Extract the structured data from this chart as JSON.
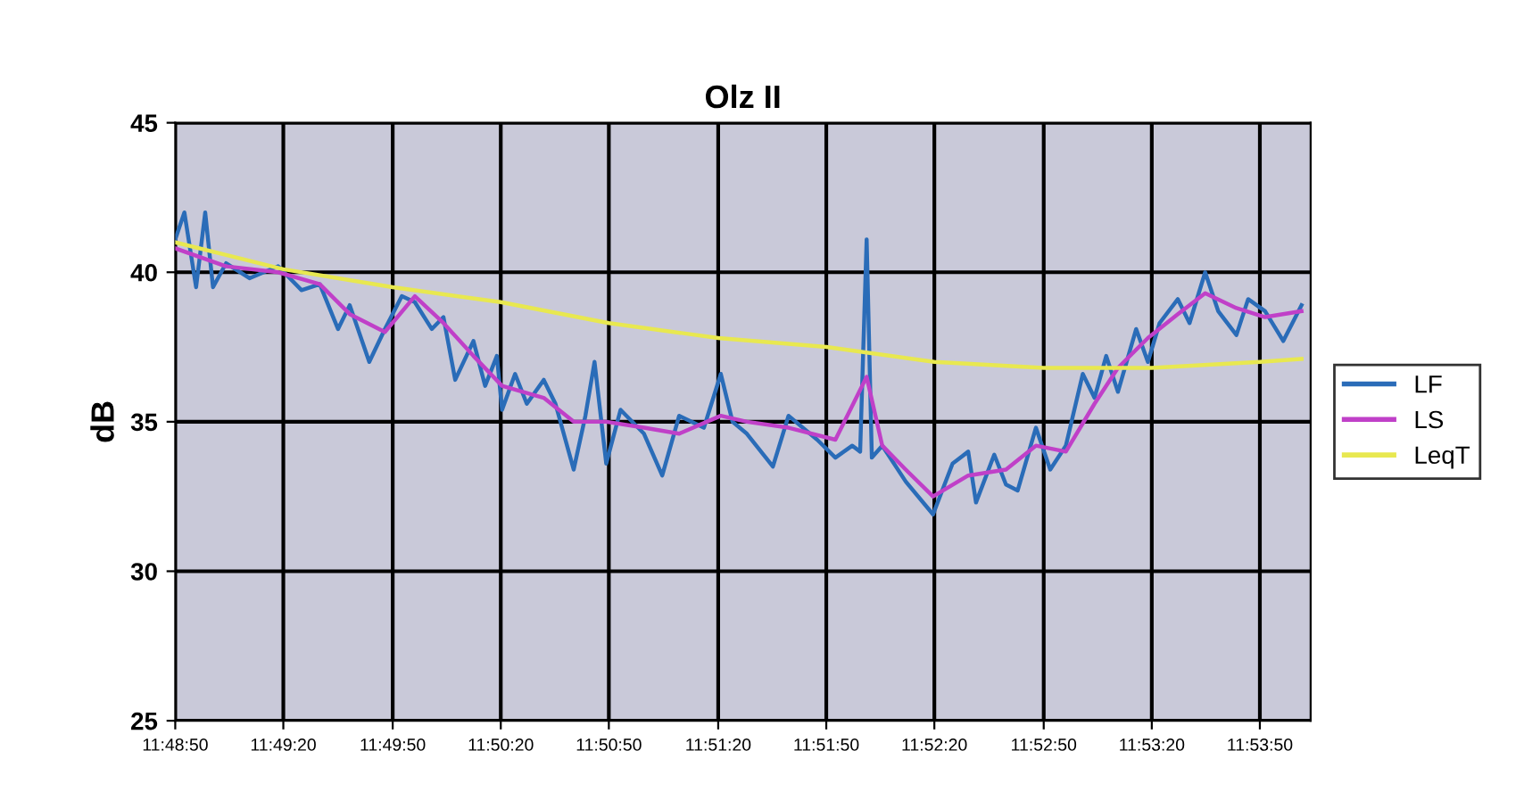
{
  "chart_data": {
    "type": "line",
    "title": "Olz II",
    "ylabel": "dB",
    "xlim": [
      11.8139,
      11.9011
    ],
    "ylim": [
      25,
      45
    ],
    "yticks": [
      25,
      30,
      35,
      40,
      45
    ],
    "xticks": [
      {
        "value": 11.8139,
        "label": "11:48:50"
      },
      {
        "value": 11.8222,
        "label": "11:49:20"
      },
      {
        "value": 11.8306,
        "label": "11:49:50"
      },
      {
        "value": 11.8389,
        "label": "11:50:20"
      },
      {
        "value": 11.8472,
        "label": "11:50:50"
      },
      {
        "value": 11.8556,
        "label": "11:51:20"
      },
      {
        "value": 11.8639,
        "label": "11:51:50"
      },
      {
        "value": 11.8722,
        "label": "11:52:20"
      },
      {
        "value": 11.8806,
        "label": "11:52:50"
      },
      {
        "value": 11.8889,
        "label": "11:53:20"
      },
      {
        "value": 11.8972,
        "label": "11:53:50"
      }
    ],
    "grid": true,
    "legend": "right",
    "marker": "none",
    "line_style": "solid",
    "series": [
      {
        "name": "LF",
        "color": "#2a6cb8",
        "x": [
          11.8139,
          11.8146,
          11.8155,
          11.8162,
          11.8168,
          11.8178,
          11.8196,
          11.8218,
          11.8236,
          11.825,
          11.8264,
          11.8273,
          11.8288,
          11.83,
          11.8313,
          11.8323,
          11.8336,
          11.8345,
          11.8354,
          11.8368,
          11.8377,
          11.8386,
          11.839,
          11.84,
          11.8409,
          11.8422,
          11.8431,
          11.8445,
          11.8454,
          11.8461,
          11.847,
          11.8481,
          11.8499,
          11.8513,
          11.8526,
          11.8545,
          11.8558,
          11.8567,
          11.8578,
          11.8598,
          11.861,
          11.8632,
          11.8646,
          11.8659,
          11.8665,
          11.867,
          11.8674,
          11.8682,
          11.87,
          11.8721,
          11.8736,
          11.8748,
          11.8754,
          11.8768,
          11.8777,
          11.8786,
          11.88,
          11.8811,
          11.8823,
          11.8836,
          11.8845,
          11.8854,
          11.8863,
          11.8877,
          11.8886,
          11.8895,
          11.8909,
          11.8918,
          11.893,
          11.894,
          11.8954,
          11.8963,
          11.8976,
          11.899,
          11.9004
        ],
        "values": [
          41.1,
          42.0,
          39.5,
          42.0,
          39.5,
          40.3,
          39.8,
          40.2,
          39.4,
          39.6,
          38.1,
          38.9,
          37.0,
          38.1,
          39.2,
          39.0,
          38.1,
          38.5,
          36.4,
          37.7,
          36.2,
          37.2,
          35.4,
          36.6,
          35.6,
          36.4,
          35.6,
          33.4,
          35.2,
          37.0,
          33.6,
          35.4,
          34.6,
          33.2,
          35.2,
          34.8,
          36.6,
          35.0,
          34.6,
          33.5,
          35.2,
          34.4,
          33.8,
          34.2,
          34.0,
          41.1,
          33.8,
          34.2,
          33.0,
          31.9,
          33.6,
          34.0,
          32.3,
          33.9,
          32.9,
          32.7,
          34.8,
          33.4,
          34.2,
          36.6,
          35.8,
          37.2,
          36.0,
          38.1,
          37.0,
          38.3,
          39.1,
          38.3,
          40.0,
          38.7,
          37.9,
          39.1,
          38.7,
          37.7,
          38.9
        ]
      },
      {
        "name": "LS",
        "color": "#c040c8",
        "x": [
          11.8139,
          11.8178,
          11.8218,
          11.825,
          11.8273,
          11.83,
          11.8323,
          11.8345,
          11.8368,
          11.839,
          11.8422,
          11.8445,
          11.847,
          11.8499,
          11.8526,
          11.8558,
          11.8578,
          11.861,
          11.8646,
          11.867,
          11.8682,
          11.87,
          11.8721,
          11.8748,
          11.8777,
          11.88,
          11.8823,
          11.8845,
          11.8863,
          11.8886,
          11.8909,
          11.893,
          11.8954,
          11.8976,
          11.9004
        ],
        "values": [
          40.8,
          40.2,
          40.0,
          39.6,
          38.6,
          38.0,
          39.2,
          38.3,
          37.2,
          36.2,
          35.8,
          35.0,
          35.0,
          34.8,
          34.6,
          35.2,
          35.0,
          34.8,
          34.4,
          36.5,
          34.2,
          33.4,
          32.5,
          33.2,
          33.4,
          34.2,
          34.0,
          35.6,
          36.8,
          37.8,
          38.6,
          39.3,
          38.8,
          38.5,
          38.7
        ]
      },
      {
        "name": "LeqT",
        "color": "#e8e850",
        "x": [
          11.8139,
          11.8222,
          11.8306,
          11.8389,
          11.8472,
          11.8556,
          11.8639,
          11.8722,
          11.8806,
          11.8889,
          11.8972,
          11.9004
        ],
        "values": [
          41.0,
          40.1,
          39.5,
          39.0,
          38.3,
          37.8,
          37.5,
          37.0,
          36.8,
          36.8,
          37.0,
          37.1
        ]
      }
    ]
  }
}
